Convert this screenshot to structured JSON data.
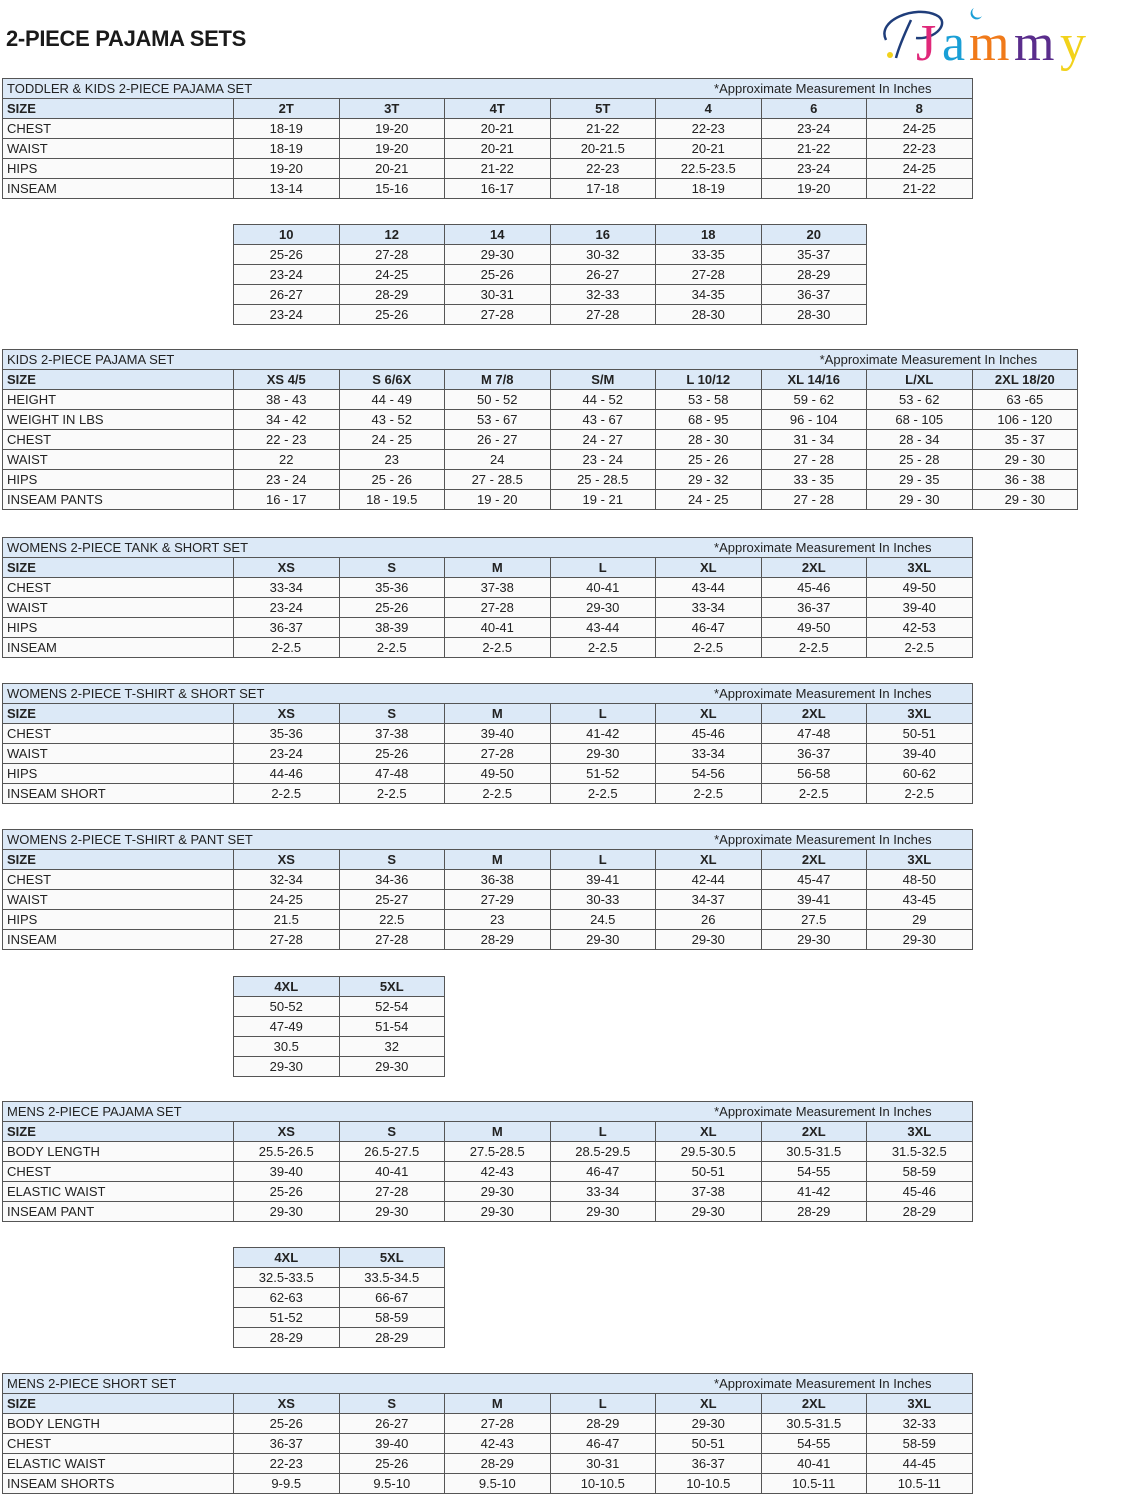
{
  "page_title": "2-PIECE PAJAMA SETS",
  "logo": {
    "text": "PJammy",
    "colors": [
      "#1f3d7a",
      "#e0287a",
      "#1a9fd6",
      "#f07a1a",
      "#5a2d8c",
      "#f2d21b"
    ]
  },
  "colors": {
    "header_bg": "#dce9f7",
    "border": "#555555"
  },
  "tables": [
    {
      "title": "TODDLER & KIDS 2-PIECE PAJAMA SET",
      "note": "*Approximate Measurement In Inches",
      "header": [
        "SIZE",
        "2T",
        "3T",
        "4T",
        "5T",
        "4",
        "6",
        "8"
      ],
      "rows": [
        [
          "CHEST",
          "18-19",
          "19-20",
          "20-21",
          "21-22",
          "22-23",
          "23-24",
          "24-25"
        ],
        [
          "WAIST",
          "18-19",
          "19-20",
          "20-21",
          "20-21.5",
          "20-21",
          "21-22",
          "22-23"
        ],
        [
          "HIPS",
          "19-20",
          "20-21",
          "21-22",
          "22-23",
          "22.5-23.5",
          "23-24",
          "24-25"
        ],
        [
          "INSEAM",
          "13-14",
          "15-16",
          "16-17",
          "17-18",
          "18-19",
          "19-20",
          "21-22"
        ]
      ]
    },
    {
      "header": [
        "10",
        "12",
        "14",
        "16",
        "18",
        "20"
      ],
      "rows": [
        [
          "25-26",
          "27-28",
          "29-30",
          "30-32",
          "33-35",
          "35-37"
        ],
        [
          "23-24",
          "24-25",
          "25-26",
          "26-27",
          "27-28",
          "28-29"
        ],
        [
          "26-27",
          "28-29",
          "30-31",
          "32-33",
          "34-35",
          "36-37"
        ],
        [
          "23-24",
          "25-26",
          "27-28",
          "27-28",
          "28-30",
          "28-30"
        ]
      ]
    },
    {
      "title": "KIDS 2-PIECE PAJAMA SET",
      "note": "*Approximate Measurement In Inches",
      "header": [
        "SIZE",
        "XS 4/5",
        "S 6/6X",
        "M 7/8",
        "S/M",
        "L 10/12",
        "XL 14/16",
        "L/XL",
        "2XL 18/20"
      ],
      "rows": [
        [
          "HEIGHT",
          "38 - 43",
          "44 - 49",
          "50 - 52",
          "44 - 52",
          "53 - 58",
          "59 - 62",
          "53 - 62",
          "63 -65"
        ],
        [
          "WEIGHT IN LBS",
          "34 - 42",
          "43 - 52",
          "53 - 67",
          "43 - 67",
          "68 - 95",
          "96 - 104",
          "68 - 105",
          "106 - 120"
        ],
        [
          "CHEST",
          "22 - 23",
          "24 - 25",
          "26 - 27",
          "24 - 27",
          "28 - 30",
          "31 - 34",
          "28 - 34",
          "35 - 37"
        ],
        [
          "WAIST",
          "22",
          "23",
          "24",
          "23 - 24",
          "25 - 26",
          "27 - 28",
          "25 - 28",
          "29 - 30"
        ],
        [
          "HIPS",
          "23 - 24",
          "25 - 26",
          "27 - 28.5",
          "25 - 28.5",
          "29 - 32",
          "33 - 35",
          "29 - 35",
          "36 - 38"
        ],
        [
          "INSEAM PANTS",
          "16 - 17",
          "18 - 19.5",
          "19 - 20",
          "19 - 21",
          "24 - 25",
          "27 - 28",
          "29 - 30",
          "29 - 30"
        ]
      ]
    },
    {
      "title": "WOMENS 2-PIECE TANK & SHORT SET",
      "note": "*Approximate Measurement In Inches",
      "header": [
        "SIZE",
        "XS",
        "S",
        "M",
        "L",
        "XL",
        "2XL",
        "3XL"
      ],
      "rows": [
        [
          "CHEST",
          "33-34",
          "35-36",
          "37-38",
          "40-41",
          "43-44",
          "45-46",
          "49-50"
        ],
        [
          "WAIST",
          "23-24",
          "25-26",
          "27-28",
          "29-30",
          "33-34",
          "36-37",
          "39-40"
        ],
        [
          "HIPS",
          "36-37",
          "38-39",
          "40-41",
          "43-44",
          "46-47",
          "49-50",
          "42-53"
        ],
        [
          "INSEAM",
          "2-2.5",
          "2-2.5",
          "2-2.5",
          "2-2.5",
          "2-2.5",
          "2-2.5",
          "2-2.5"
        ]
      ]
    },
    {
      "title": "WOMENS 2-PIECE T-SHIRT & SHORT SET",
      "note": "*Approximate Measurement In Inches",
      "header": [
        "SIZE",
        "XS",
        "S",
        "M",
        "L",
        "XL",
        "2XL",
        "3XL"
      ],
      "rows": [
        [
          "CHEST",
          "35-36",
          "37-38",
          "39-40",
          "41-42",
          "45-46",
          "47-48",
          "50-51"
        ],
        [
          "WAIST",
          "23-24",
          "25-26",
          "27-28",
          "29-30",
          "33-34",
          "36-37",
          "39-40"
        ],
        [
          "HIPS",
          "44-46",
          "47-48",
          "49-50",
          "51-52",
          "54-56",
          "56-58",
          "60-62"
        ],
        [
          "INSEAM SHORT",
          "2-2.5",
          "2-2.5",
          "2-2.5",
          "2-2.5",
          "2-2.5",
          "2-2.5",
          "2-2.5"
        ]
      ]
    },
    {
      "title": "WOMENS 2-PIECE T-SHIRT & PANT SET",
      "note": "*Approximate Measurement In Inches",
      "header": [
        "SIZE",
        "XS",
        "S",
        "M",
        "L",
        "XL",
        "2XL",
        "3XL"
      ],
      "rows": [
        [
          "CHEST",
          "32-34",
          "34-36",
          "36-38",
          "39-41",
          "42-44",
          "45-47",
          "48-50"
        ],
        [
          "WAIST",
          "24-25",
          "25-27",
          "27-29",
          "30-33",
          "34-37",
          "39-41",
          "43-45"
        ],
        [
          "HIPS",
          "21.5",
          "22.5",
          "23",
          "24.5",
          "26",
          "27.5",
          "29"
        ],
        [
          "INSEAM",
          "27-28",
          "27-28",
          "28-29",
          "29-30",
          "29-30",
          "29-30",
          "29-30"
        ]
      ]
    },
    {
      "header": [
        "4XL",
        "5XL"
      ],
      "rows": [
        [
          "50-52",
          "52-54"
        ],
        [
          "47-49",
          "51-54"
        ],
        [
          "30.5",
          "32"
        ],
        [
          "29-30",
          "29-30"
        ]
      ]
    },
    {
      "title": "MENS 2-PIECE PAJAMA SET",
      "note": "*Approximate Measurement In Inches",
      "header": [
        "SIZE",
        "XS",
        "S",
        "M",
        "L",
        "XL",
        "2XL",
        "3XL"
      ],
      "rows": [
        [
          "BODY LENGTH",
          "25.5-26.5",
          "26.5-27.5",
          "27.5-28.5",
          "28.5-29.5",
          "29.5-30.5",
          "30.5-31.5",
          "31.5-32.5"
        ],
        [
          "CHEST",
          "39-40",
          "40-41",
          "42-43",
          "46-47",
          "50-51",
          "54-55",
          "58-59"
        ],
        [
          "ELASTIC WAIST",
          "25-26",
          "27-28",
          "29-30",
          "33-34",
          "37-38",
          "41-42",
          "45-46"
        ],
        [
          "INSEAM PANT",
          "29-30",
          "29-30",
          "29-30",
          "29-30",
          "29-30",
          "28-29",
          "28-29"
        ]
      ]
    },
    {
      "header": [
        "4XL",
        "5XL"
      ],
      "rows": [
        [
          "32.5-33.5",
          "33.5-34.5"
        ],
        [
          "62-63",
          "66-67"
        ],
        [
          "51-52",
          "58-59"
        ],
        [
          "28-29",
          "28-29"
        ]
      ]
    },
    {
      "title": "MENS 2-PIECE SHORT SET",
      "note": "*Approximate Measurement In Inches",
      "header": [
        "SIZE",
        "XS",
        "S",
        "M",
        "L",
        "XL",
        "2XL",
        "3XL"
      ],
      "rows": [
        [
          "BODY LENGTH",
          "25-26",
          "26-27",
          "27-28",
          "28-29",
          "29-30",
          "30.5-31.5",
          "32-33"
        ],
        [
          "CHEST",
          "36-37",
          "39-40",
          "42-43",
          "46-47",
          "50-51",
          "54-55",
          "58-59"
        ],
        [
          "ELASTIC WAIST",
          "22-23",
          "25-26",
          "28-29",
          "30-31",
          "36-37",
          "40-41",
          "44-45"
        ],
        [
          "INSEAM SHORTS",
          "9-9.5",
          "9.5-10",
          "9.5-10",
          "10-10.5",
          "10-10.5",
          "10.5-11",
          "10.5-11"
        ]
      ]
    }
  ]
}
